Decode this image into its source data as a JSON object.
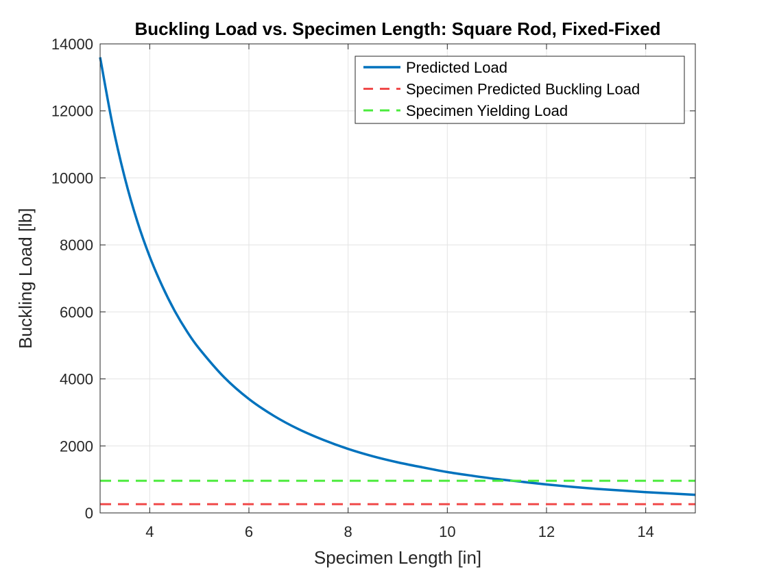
{
  "chart_data": {
    "type": "line",
    "title": "Buckling Load vs. Specimen Length: Square Rod, Fixed-Fixed",
    "xlabel": "Specimen Length [in]",
    "ylabel": "Buckling Load [lb]",
    "xlim": [
      3,
      15
    ],
    "ylim": [
      0,
      14000
    ],
    "xticks": [
      4,
      6,
      8,
      10,
      12,
      14
    ],
    "yticks": [
      0,
      2000,
      4000,
      6000,
      8000,
      10000,
      12000,
      14000
    ],
    "grid": true,
    "legend_position": "top-right",
    "series": [
      {
        "name": "Predicted Load",
        "style": "solid",
        "color": "#0072BD",
        "x": [
          3,
          3.25,
          3.5,
          3.75,
          4,
          4.25,
          4.5,
          4.75,
          5,
          5.5,
          6,
          6.5,
          7,
          7.5,
          8,
          8.5,
          9,
          9.5,
          10,
          10.5,
          11,
          11.5,
          12,
          12.5,
          13,
          13.5,
          14,
          14.5,
          15
        ],
        "y": [
          13600,
          11590,
          9990,
          8700,
          7650,
          6780,
          6040,
          5420,
          4900,
          4050,
          3400,
          2900,
          2500,
          2180,
          1910,
          1690,
          1510,
          1360,
          1220,
          1110,
          1010,
          930,
          850,
          780,
          720,
          670,
          620,
          580,
          540
        ]
      },
      {
        "name": "Specimen Predicted Buckling Load",
        "style": "dashed",
        "color": "#F04A4A",
        "x": [
          3,
          15
        ],
        "y": [
          260,
          260
        ]
      },
      {
        "name": "Specimen Yielding Load",
        "style": "dashed",
        "color": "#4BEB3C",
        "x": [
          3,
          15
        ],
        "y": [
          960,
          960
        ]
      }
    ]
  }
}
